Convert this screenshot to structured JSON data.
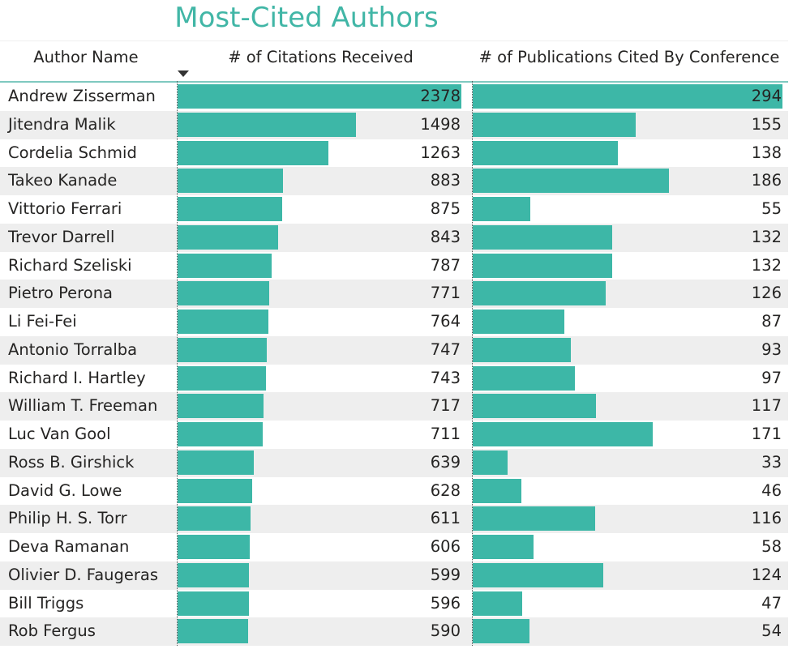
{
  "chart_data": {
    "type": "table",
    "title": "Most-Cited Authors",
    "columns": [
      "Author Name",
      "# of Citations Received",
      "# of Publications Cited By Conference"
    ],
    "sort": {
      "column": "# of Citations Received",
      "direction": "descending"
    },
    "bar_color": "#3db7a7",
    "rows": [
      {
        "name": "Andrew Zisserman",
        "citations": 2378,
        "publications": 294
      },
      {
        "name": "Jitendra Malik",
        "citations": 1498,
        "publications": 155
      },
      {
        "name": "Cordelia Schmid",
        "citations": 1263,
        "publications": 138
      },
      {
        "name": "Takeo Kanade",
        "citations": 883,
        "publications": 186
      },
      {
        "name": "Vittorio Ferrari",
        "citations": 875,
        "publications": 55
      },
      {
        "name": "Trevor Darrell",
        "citations": 843,
        "publications": 132
      },
      {
        "name": "Richard Szeliski",
        "citations": 787,
        "publications": 132
      },
      {
        "name": "Pietro Perona",
        "citations": 771,
        "publications": 126
      },
      {
        "name": "Li Fei-Fei",
        "citations": 764,
        "publications": 87
      },
      {
        "name": "Antonio Torralba",
        "citations": 747,
        "publications": 93
      },
      {
        "name": "Richard I. Hartley",
        "citations": 743,
        "publications": 97
      },
      {
        "name": "William T. Freeman",
        "citations": 717,
        "publications": 117
      },
      {
        "name": "Luc Van Gool",
        "citations": 711,
        "publications": 171
      },
      {
        "name": "Ross B. Girshick",
        "citations": 639,
        "publications": 33
      },
      {
        "name": "David G. Lowe",
        "citations": 628,
        "publications": 46
      },
      {
        "name": "Philip H. S. Torr",
        "citations": 611,
        "publications": 116
      },
      {
        "name": "Deva Ramanan",
        "citations": 606,
        "publications": 58
      },
      {
        "name": "Olivier D. Faugeras",
        "citations": 599,
        "publications": 124
      },
      {
        "name": "Bill Triggs",
        "citations": 596,
        "publications": 47
      },
      {
        "name": "Rob Fergus",
        "citations": 590,
        "publications": 54
      }
    ]
  }
}
